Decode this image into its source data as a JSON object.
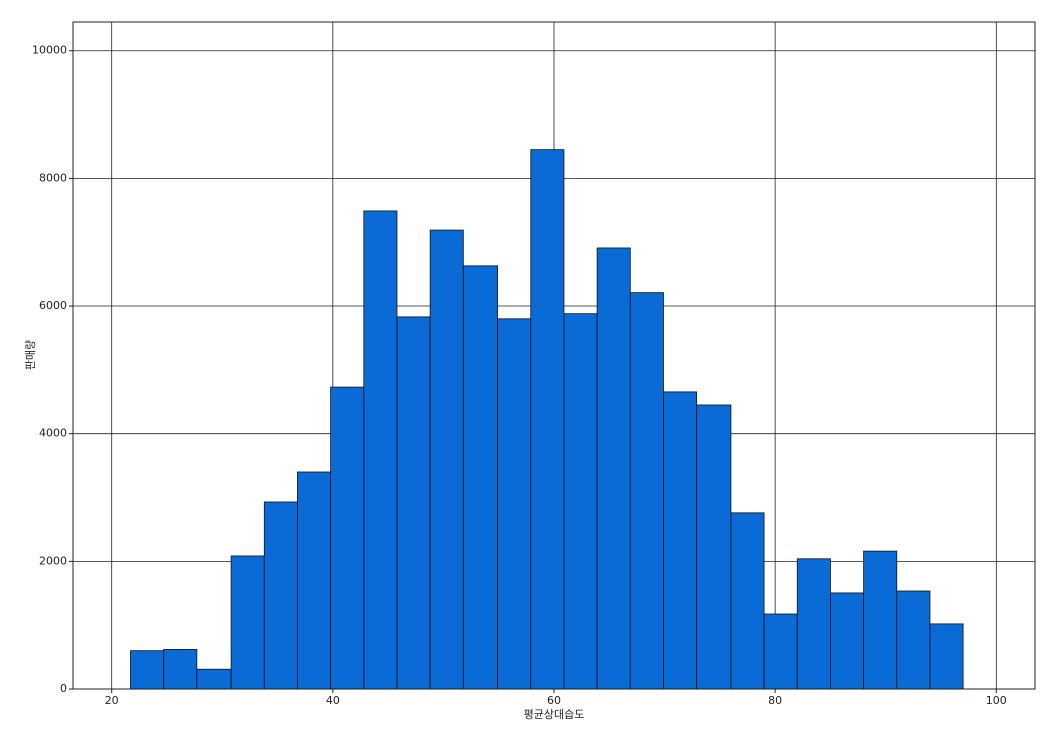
{
  "chart_data": {
    "type": "histogram",
    "x_label": "평균상대습도",
    "y_label": "판매량",
    "bins": [
      21.7,
      24.7,
      27.7,
      30.8,
      33.8,
      36.8,
      39.8,
      42.8,
      45.8,
      48.8,
      51.8,
      54.9,
      57.9,
      60.9,
      63.9,
      66.9,
      69.9,
      72.9,
      76.0,
      79.0,
      82.0,
      85.0,
      88.0,
      91.0,
      94.0,
      97.0
    ],
    "values": [
      600,
      620,
      310,
      2085,
      2930,
      3400,
      4730,
      7490,
      5830,
      7190,
      6630,
      5800,
      8450,
      5880,
      6910,
      6210,
      4655,
      4450,
      2760,
      1175,
      2040,
      1505,
      2160,
      1535,
      1020
    ],
    "color": "#0a6bd6",
    "xlim": [
      16.5,
      103.5
    ],
    "xticks": [
      20,
      40,
      60,
      80,
      100
    ],
    "ylim": [
      0,
      10450
    ],
    "yticks": [
      0,
      2000,
      4000,
      6000,
      8000,
      10000
    ],
    "grid": true
  }
}
